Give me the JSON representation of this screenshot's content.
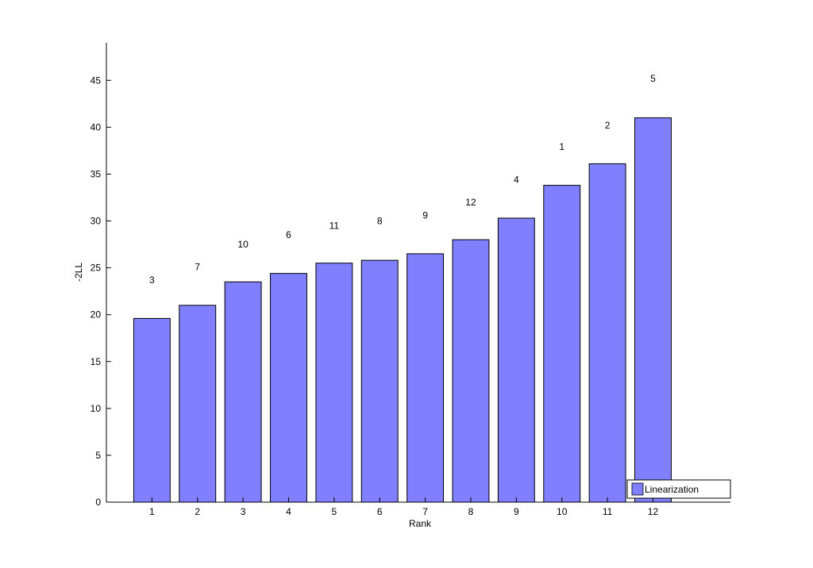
{
  "chart_data": {
    "type": "bar",
    "title": "",
    "xlabel": "Rank",
    "ylabel": "-2LL",
    "categories": [
      "1",
      "2",
      "3",
      "4",
      "5",
      "6",
      "7",
      "8",
      "9",
      "10",
      "11",
      "12"
    ],
    "series": [
      {
        "name": "Linearization",
        "values": [
          19.6,
          21.0,
          23.5,
          24.4,
          25.5,
          25.8,
          26.5,
          28.0,
          30.3,
          33.8,
          36.1,
          41.0
        ],
        "bar_labels": [
          "3",
          "7",
          "10",
          "6",
          "11",
          "8",
          "9",
          "12",
          "4",
          "1",
          "2",
          "5"
        ],
        "bar_label_values": [
          23.7,
          25.1,
          27.5,
          28.5,
          29.5,
          30.0,
          30.6,
          32.0,
          34.4,
          37.9,
          40.2,
          45.2
        ],
        "color": "#8080ff"
      }
    ],
    "ylim": [
      0,
      49
    ],
    "yticks": [
      0,
      5,
      10,
      15,
      20,
      25,
      30,
      35,
      40,
      45
    ],
    "xlim": [
      0,
      13.7
    ],
    "grid": false,
    "legend_position": "bottom-right"
  }
}
